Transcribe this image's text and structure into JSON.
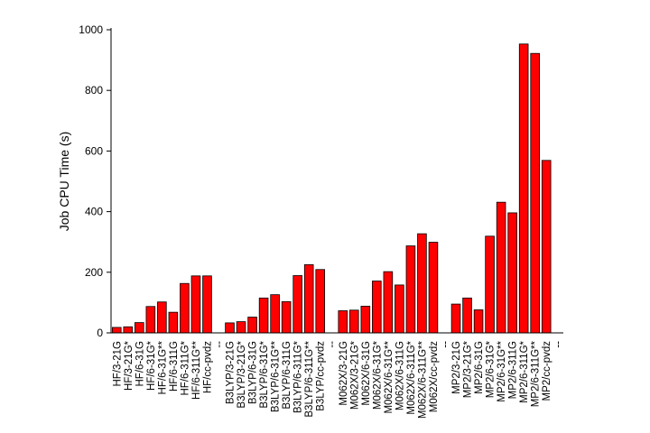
{
  "chart_data": {
    "type": "bar",
    "title": "",
    "xlabel": "",
    "ylabel": "Job CPU Time (s)",
    "ylim": [
      0,
      1000
    ],
    "yticks": [
      0,
      200,
      400,
      600,
      800,
      1000
    ],
    "grid": false,
    "legend": "none",
    "bar_color": "#ff0000",
    "bar_edge_color": "#000000",
    "categories": [
      "HF/3-21G",
      "HF/3-21G*",
      "HF/6-31G",
      "HF/6-31G*",
      "HF/6-31G**",
      "HF/6-311G",
      "HF/6-311G*",
      "HF/6-311G**",
      "HF/cc-pvdz",
      "--",
      "B3LYP/3-21G",
      "B3LYP/3-21G*",
      "B3LYP/6-31G",
      "B3LYP/6-31G*",
      "B3LYP/6-31G**",
      "B3LYP/6-311G",
      "B3LYP/6-311G*",
      "B3LYP/6-311G**",
      "B3LYP/cc-pvdz",
      "--",
      "M062X/3-21G",
      "M062X/3-21G*",
      "M062X/6-31G",
      "M062X/6-31G*",
      "M062X/6-31G**",
      "M062X/6-311G",
      "M062X/6-311G*",
      "M062X/6-311G**",
      "M062X/cc-pvdz",
      "--",
      "MP2/3-21G",
      "MP2/3-21G*",
      "MP2/6-31G",
      "MP2/6-31G*",
      "MP2/6-31G**",
      "MP2/6-311G",
      "MP2/6-311G*",
      "MP2/6-311G**",
      "MP2/cc-pvdz",
      "--"
    ],
    "values": [
      18,
      20,
      34,
      87,
      102,
      68,
      163,
      188,
      188,
      null,
      33,
      37,
      52,
      115,
      126,
      103,
      189,
      225,
      209,
      null,
      73,
      75,
      88,
      171,
      202,
      158,
      287,
      327,
      299,
      null,
      95,
      115,
      76,
      319,
      431,
      396,
      953,
      922,
      569,
      null
    ]
  }
}
